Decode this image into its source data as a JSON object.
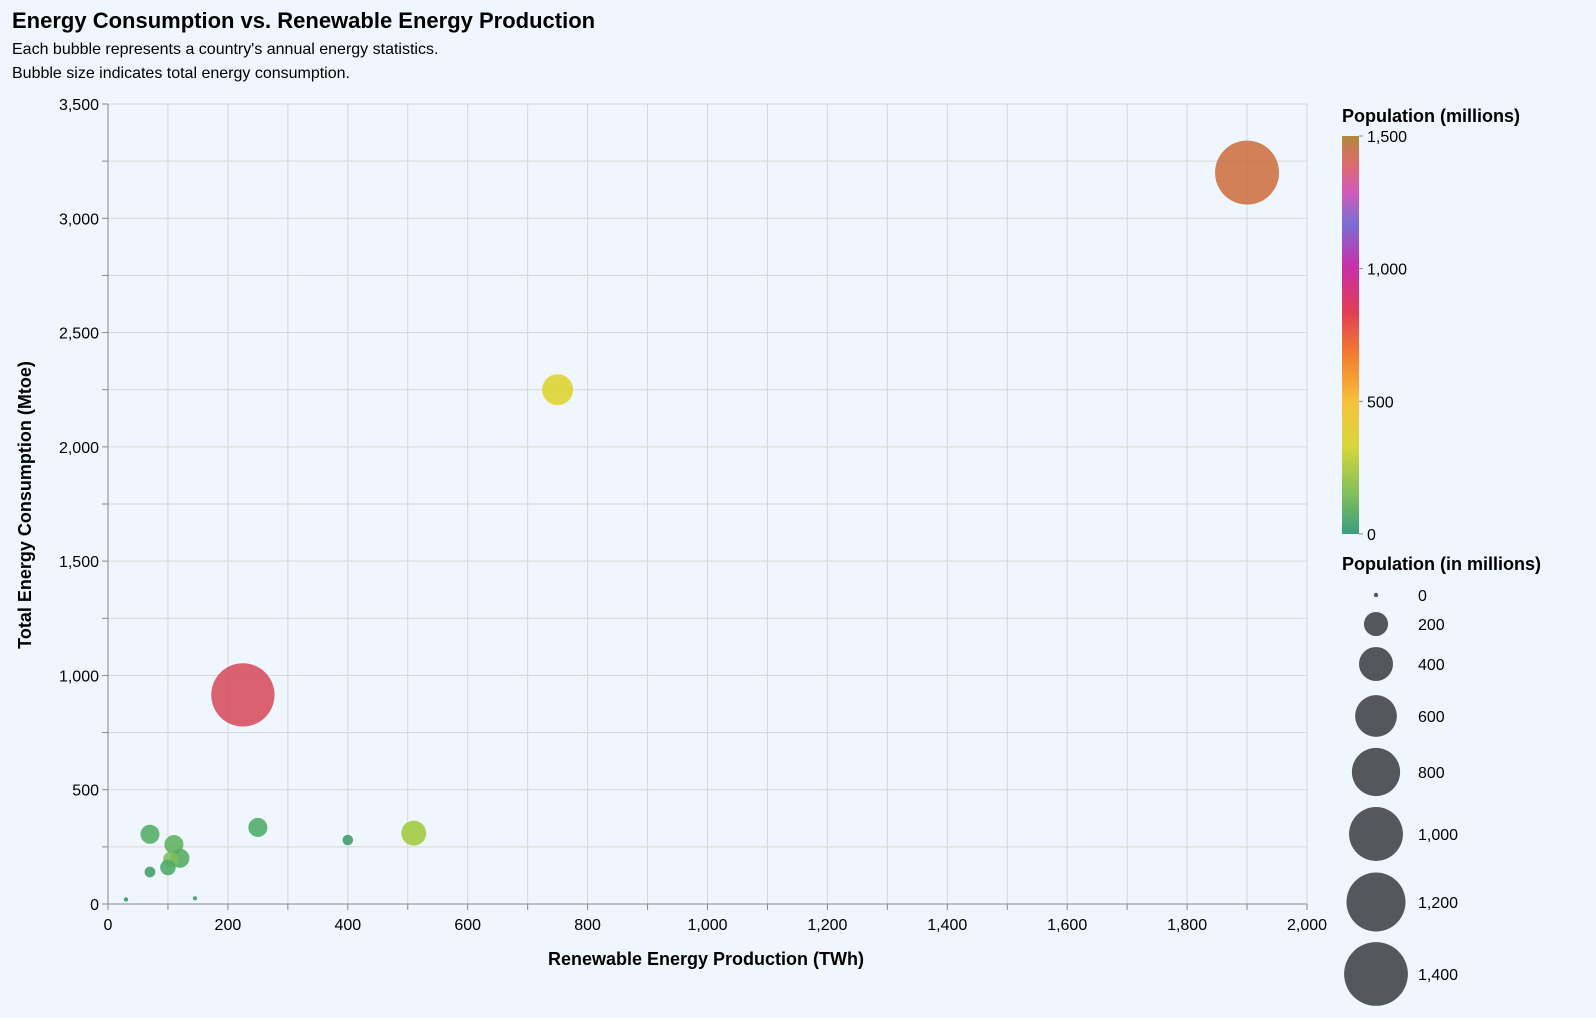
{
  "chart_data": {
    "type": "scatter",
    "title": "Energy Consumption vs. Renewable Energy Production",
    "subtitle": [
      "Each bubble represents a country's annual energy statistics.",
      "Bubble size indicates total energy consumption."
    ],
    "xlabel": "Renewable Energy Production (TWh)",
    "ylabel": "Total Energy Consumption (Mtoe)",
    "xlim": [
      0,
      2000
    ],
    "ylim": [
      0,
      3500
    ],
    "x_ticks": [
      0,
      200,
      400,
      600,
      800,
      1000,
      1200,
      1400,
      1600,
      1800,
      2000
    ],
    "x_tick_labels": [
      "0",
      "200",
      "400",
      "600",
      "800",
      "1,000",
      "1,200",
      "1,400",
      "1,600",
      "1,800",
      "2,000"
    ],
    "y_ticks": [
      0,
      500,
      1000,
      1500,
      2000,
      2500,
      3000,
      3500
    ],
    "y_tick_labels": [
      "0",
      "500",
      "1,000",
      "1,500",
      "2,000",
      "2,500",
      "3,000",
      "3,500"
    ],
    "grid": true,
    "color_legend": {
      "title": "Population (millions)",
      "domain": [
        0,
        1500
      ],
      "ticks": [
        0,
        500,
        1000,
        1500
      ],
      "tick_labels": [
        "0",
        "500",
        "1,000",
        "1,500"
      ],
      "placement": "right",
      "stops": [
        {
          "offset": 0.0,
          "color": "#3a9e7c"
        },
        {
          "offset": 0.1,
          "color": "#80bf5c"
        },
        {
          "offset": 0.22,
          "color": "#d7d73a"
        },
        {
          "offset": 0.33,
          "color": "#f6c23d"
        },
        {
          "offset": 0.45,
          "color": "#f27d2d"
        },
        {
          "offset": 0.56,
          "color": "#e23c58"
        },
        {
          "offset": 0.67,
          "color": "#c92fa8"
        },
        {
          "offset": 0.78,
          "color": "#7d6ed6"
        },
        {
          "offset": 0.86,
          "color": "#d15ab8"
        },
        {
          "offset": 0.93,
          "color": "#de6a6d"
        },
        {
          "offset": 1.0,
          "color": "#b08a3c"
        }
      ]
    },
    "size_legend": {
      "title": "Population (in millions)",
      "values": [
        0,
        200,
        400,
        600,
        800,
        1000,
        1200,
        1400
      ],
      "labels": [
        "0",
        "200",
        "400",
        "600",
        "800",
        "1,000",
        "1,200",
        "1,400"
      ],
      "placement": "right",
      "color": "#54575b"
    },
    "points": [
      {
        "x": 1900,
        "y": 3200,
        "population": 1410,
        "color": "#cc7040"
      },
      {
        "x": 750,
        "y": 2250,
        "population": 330,
        "color": "#dcd32c"
      },
      {
        "x": 225,
        "y": 915,
        "population": 1380,
        "color": "#d64d5c"
      },
      {
        "x": 510,
        "y": 310,
        "population": 215,
        "color": "#9ecb3c"
      },
      {
        "x": 250,
        "y": 335,
        "population": 125,
        "color": "#4cab68"
      },
      {
        "x": 400,
        "y": 280,
        "population": 38,
        "color": "#3a9c68"
      },
      {
        "x": 70,
        "y": 305,
        "population": 125,
        "color": "#52ad64"
      },
      {
        "x": 110,
        "y": 260,
        "population": 125,
        "color": "#5db060"
      },
      {
        "x": 120,
        "y": 200,
        "population": 125,
        "color": "#53ab62"
      },
      {
        "x": 105,
        "y": 195,
        "population": 84,
        "color": "#7fbd5c"
      },
      {
        "x": 100,
        "y": 160,
        "population": 84,
        "color": "#4cab66"
      },
      {
        "x": 70,
        "y": 140,
        "population": 40,
        "color": "#3d9f6c"
      },
      {
        "x": 30,
        "y": 20,
        "population": 5,
        "color": "#2f9a66"
      },
      {
        "x": 145,
        "y": 25,
        "population": 5,
        "color": "#3c9e6c"
      }
    ]
  }
}
